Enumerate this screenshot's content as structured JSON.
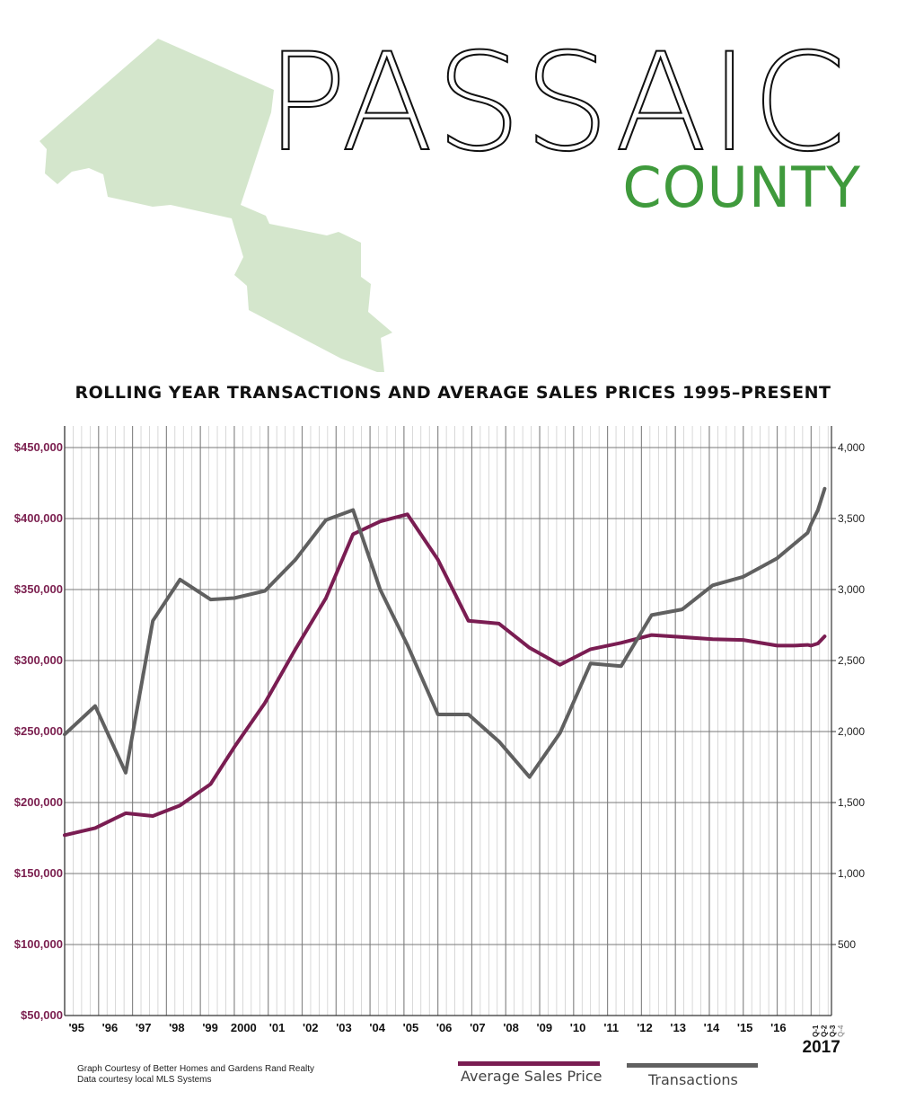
{
  "header": {
    "title": "PASSAIC",
    "subtitle": "COUNTY",
    "map_fill_color": "#d4e6cc",
    "subtitle_color": "#3f9a3c"
  },
  "chart_data": {
    "type": "line",
    "title": "ROLLING YEAR TRANSACTIONS AND AVERAGE SALES PRICES 1995–PRESENT",
    "x_labels": [
      "'95",
      "'96",
      "'97",
      "'98",
      "'99",
      "2000",
      "'01",
      "'02",
      "'03",
      "'04",
      "'05",
      "'06",
      "'07",
      "'08",
      "'09",
      "'10",
      "'11",
      "'12",
      "'13",
      "'14",
      "'15",
      "'16",
      "Q-1",
      "Q-2",
      "Q-3",
      "Q-4"
    ],
    "x_year_label": "2017",
    "y_left": {
      "min": 50000,
      "max": 450000,
      "ticks": [
        "$50,000",
        "$100,000",
        "$150,000",
        "$200,000",
        "$250,000",
        "$300,000",
        "$350,000",
        "$400,000",
        "$450,000"
      ],
      "color": "#7b1f4f"
    },
    "y_right": {
      "min": 0,
      "max": 4000,
      "ticks": [
        "500",
        "1,000",
        "1,500",
        "2,000",
        "2,500",
        "3,000",
        "3,500",
        "4,000"
      ]
    },
    "series": [
      {
        "name": "Average Sales Price",
        "axis": "left",
        "color": "#7a1d52",
        "x": [
          1995.0,
          1995.9,
          1996.8,
          1997.6,
          1998.4,
          1999.3,
          2000.0,
          2000.9,
          2001.8,
          2002.7,
          2003.5,
          2004.3,
          2005.1,
          2006.0,
          2006.9,
          2007.8,
          2008.7,
          2009.6,
          2010.5,
          2011.4,
          2012.3,
          2013.2,
          2014.1,
          2015.0,
          2016.0,
          2016.5,
          2016.9,
          2017.0,
          2017.2,
          2017.4
        ],
        "values": [
          177000,
          182000,
          192500,
          190500,
          198000,
          213000,
          239000,
          270000,
          308000,
          344000,
          389000,
          398000,
          403000,
          371000,
          328000,
          326000,
          309000,
          297000,
          308000,
          312500,
          318000,
          316500,
          315000,
          314500,
          310500,
          310500,
          311000,
          310500,
          312000,
          317000
        ]
      },
      {
        "name": "Transactions",
        "axis": "right",
        "color": "#606060",
        "x": [
          1995.0,
          1995.9,
          1996.8,
          1997.6,
          1998.4,
          1999.3,
          2000.0,
          2000.9,
          2001.8,
          2002.7,
          2003.5,
          2004.3,
          2005.1,
          2006.0,
          2006.9,
          2007.8,
          2008.7,
          2009.6,
          2010.5,
          2011.4,
          2012.3,
          2013.2,
          2014.1,
          2015.0,
          2016.0,
          2016.5,
          2016.9,
          2017.0,
          2017.2,
          2017.4
        ],
        "values": [
          1980,
          2180,
          1710,
          2780,
          3070,
          2930,
          2940,
          2990,
          3210,
          3490,
          3560,
          3000,
          2610,
          2120,
          2120,
          1930,
          1680,
          1990,
          2480,
          2460,
          2820,
          2860,
          3030,
          3090,
          3220,
          3320,
          3400,
          3460,
          3560,
          3710
        ]
      }
    ],
    "legend": [
      "Average Sales Price",
      "Transactions"
    ],
    "grid": true
  },
  "footer": {
    "credit_line1": "Graph Courtesy of Better Homes and Gardens Rand Realty",
    "credit_line2": "Data courtesy local MLS Systems"
  }
}
